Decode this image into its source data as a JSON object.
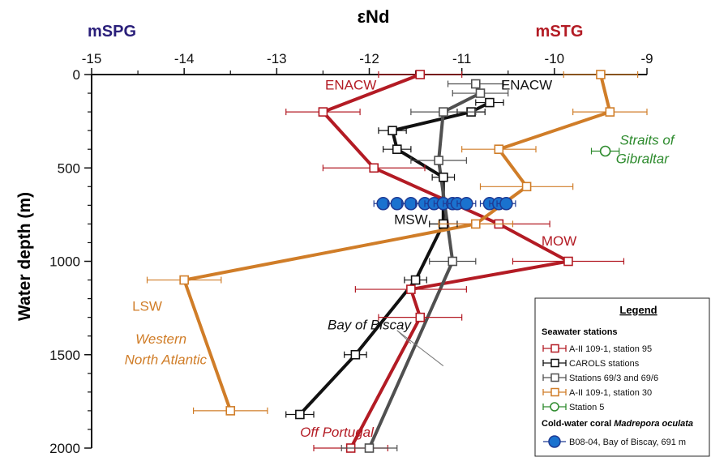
{
  "chart_data": {
    "type": "line",
    "title": "εNd",
    "xlabel": "εNd",
    "ylabel": "Water depth (m)",
    "x_axis_position": "top",
    "y_inverted": true,
    "xlim": [
      -15,
      -9
    ],
    "ylim": [
      0,
      2000
    ],
    "x_ticks": [
      "-15",
      "-14",
      "-13",
      "-12",
      "-11",
      "-10",
      "-9"
    ],
    "y_ticks": [
      "0",
      "500",
      "1000",
      "1500",
      "2000"
    ],
    "end_labels": {
      "left": "mSPG",
      "right": "mSTG"
    },
    "end_label_colors": {
      "left": "#2a1f7a",
      "right": "#b31b24"
    },
    "grid": false,
    "series": [
      {
        "name": "A-II 109-1, station 95",
        "color": "#b31b24",
        "marker": "open-square",
        "points": [
          {
            "x": -11.45,
            "y": 0,
            "err": 0.45
          },
          {
            "x": -12.5,
            "y": 200,
            "err": 0.4
          },
          {
            "x": -11.95,
            "y": 500,
            "err": 0.55
          },
          {
            "x": -10.6,
            "y": 800,
            "err": 0.55
          },
          {
            "x": -9.85,
            "y": 1000,
            "err": 0.6
          },
          {
            "x": -11.55,
            "y": 1150,
            "err": 0.6
          },
          {
            "x": -11.45,
            "y": 1300,
            "err": 0.45
          },
          {
            "x": -12.2,
            "y": 2000,
            "err": 0.4
          }
        ]
      },
      {
        "name": "CAROLS stations",
        "color": "#111111",
        "marker": "open-square",
        "points": [
          {
            "x": -10.7,
            "y": 150,
            "err": 0.15
          },
          {
            "x": -10.9,
            "y": 200,
            "err": 0.15
          },
          {
            "x": -11.75,
            "y": 300,
            "err": 0.15
          },
          {
            "x": -11.7,
            "y": 400,
            "err": 0.15
          },
          {
            "x": -11.2,
            "y": 550,
            "err": 0.12
          },
          {
            "x": -11.2,
            "y": 800,
            "err": 0.15
          },
          {
            "x": -11.5,
            "y": 1100,
            "err": 0.12
          },
          {
            "x": -12.15,
            "y": 1500,
            "err": 0.12
          },
          {
            "x": -12.75,
            "y": 1820,
            "err": 0.15
          }
        ]
      },
      {
        "name": "Stations 69/3 and 69/6",
        "color": "#505050",
        "marker": "open-square",
        "points": [
          {
            "x": -10.85,
            "y": 50,
            "err": 0.3
          },
          {
            "x": -10.8,
            "y": 100,
            "err": 0.3
          },
          {
            "x": -11.2,
            "y": 200,
            "err": 0.35
          },
          {
            "x": -11.25,
            "y": 460,
            "err": 0.3
          },
          {
            "x": -11.1,
            "y": 1000,
            "err": 0.25
          },
          {
            "x": -12.0,
            "y": 2000,
            "err": 0.3
          }
        ]
      },
      {
        "name": "A-II 109-1, station 30",
        "color": "#d07d28",
        "marker": "open-square",
        "points": [
          {
            "x": -9.5,
            "y": 0,
            "err": 0.4
          },
          {
            "x": -9.4,
            "y": 200,
            "err": 0.4
          },
          {
            "x": -10.6,
            "y": 400,
            "err": 0.4
          },
          {
            "x": -10.3,
            "y": 600,
            "err": 0.5
          },
          {
            "x": -10.85,
            "y": 800,
            "err": 0.4
          },
          {
            "x": -14.0,
            "y": 1100,
            "err": 0.4
          },
          {
            "x": -13.5,
            "y": 1800,
            "err": 0.4
          }
        ]
      },
      {
        "name": "Station 5",
        "color": "#2e8b2e",
        "marker": "open-circle",
        "points": [
          {
            "x": -9.45,
            "y": 410,
            "err": 0.15
          }
        ]
      },
      {
        "name": "B08-04, Bay of Biscay, 691 m",
        "color": "#1f3a93",
        "fill": "#1a72cf",
        "marker": "filled-circle",
        "no_line": true,
        "points": [
          {
            "x": -11.85,
            "y": 691,
            "err": 0.1
          },
          {
            "x": -11.7,
            "y": 691,
            "err": 0.1
          },
          {
            "x": -11.55,
            "y": 691,
            "err": 0.1
          },
          {
            "x": -11.4,
            "y": 691,
            "err": 0.1
          },
          {
            "x": -11.3,
            "y": 691,
            "err": 0.1
          },
          {
            "x": -11.2,
            "y": 691,
            "err": 0.1
          },
          {
            "x": -11.1,
            "y": 691,
            "err": 0.1
          },
          {
            "x": -11.05,
            "y": 691,
            "err": 0.1
          },
          {
            "x": -10.95,
            "y": 691,
            "err": 0.1
          },
          {
            "x": -10.7,
            "y": 691,
            "err": 0.1
          },
          {
            "x": -10.6,
            "y": 691,
            "err": 0.1
          },
          {
            "x": -10.52,
            "y": 691,
            "err": 0.1
          }
        ]
      }
    ],
    "annotations": [
      {
        "text": "ENACW",
        "color": "#b31b24",
        "italic": false,
        "x": -12.2,
        "y": 80
      },
      {
        "text": "ENACW",
        "color": "#111111",
        "italic": false,
        "x": -10.3,
        "y": 80
      },
      {
        "text": "MSW",
        "color": "#111111",
        "italic": false,
        "x": -11.55,
        "y": 800
      },
      {
        "text": "MOW",
        "color": "#b31b24",
        "italic": false,
        "x": -9.95,
        "y": 915
      },
      {
        "text": "LSW",
        "color": "#d07d28",
        "italic": false,
        "x": -14.4,
        "y": 1265
      },
      {
        "text": "Western",
        "color": "#d07d28",
        "italic": true,
        "x": -14.25,
        "y": 1440
      },
      {
        "text": "North Atlantic",
        "color": "#d07d28",
        "italic": true,
        "x": -14.2,
        "y": 1550
      },
      {
        "text": "Bay of Biscay",
        "color": "#111111",
        "italic": true,
        "x": -12.0,
        "y": 1365
      },
      {
        "text": "Off Portugal",
        "color": "#b31b24",
        "italic": true,
        "x": -12.35,
        "y": 1940
      },
      {
        "text": "Straits of",
        "color": "#2e8b2e",
        "italic": true,
        "x": -9.0,
        "y": 375
      },
      {
        "text": "Gibraltar",
        "color": "#2e8b2e",
        "italic": true,
        "x": -9.05,
        "y": 475
      }
    ],
    "legend": {
      "position": "bottom-right",
      "title": "Legend",
      "group1_title": "Seawater stations",
      "group2_title_prefix": "Cold-water coral ",
      "group2_title_species": "Madrepora oculata"
    }
  }
}
